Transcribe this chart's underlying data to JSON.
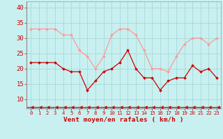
{
  "x": [
    0,
    1,
    2,
    3,
    4,
    5,
    6,
    7,
    8,
    9,
    10,
    11,
    12,
    13,
    14,
    15,
    16,
    17,
    18,
    19,
    20,
    21,
    22,
    23
  ],
  "wind_avg": [
    22,
    22,
    22,
    22,
    20,
    19,
    19,
    13,
    16,
    19,
    20,
    22,
    26,
    20,
    17,
    17,
    13,
    16,
    17,
    17,
    21,
    19,
    20,
    17
  ],
  "wind_gust": [
    33,
    33,
    33,
    33,
    31,
    31,
    26,
    24,
    20,
    24,
    31,
    33,
    33,
    31,
    26,
    20,
    20,
    19,
    24,
    28,
    30,
    30,
    28,
    30
  ],
  "wind_dir_y": [
    7.5,
    7.5,
    7.5,
    7.5,
    7.5,
    7.5,
    7.5,
    7.5,
    7.5,
    7.5,
    7.5,
    7.5,
    7.5,
    7.5,
    7.5,
    7.5,
    7.5,
    7.5,
    7.5,
    7.5,
    7.5,
    7.5,
    7.5,
    7.5
  ],
  "ylim": [
    7,
    42
  ],
  "yticks": [
    10,
    15,
    20,
    25,
    30,
    35,
    40
  ],
  "xlim": [
    -0.5,
    23.5
  ],
  "bg_color": "#c8f0f0",
  "grid_color": "#a8d8d8",
  "avg_color": "#cc0000",
  "gust_color": "#ff9999",
  "dir_color": "#cc0000",
  "xlabel": "Vent moyen/en rafales ( km/h )",
  "xlabel_color": "#cc0000",
  "tick_color": "#cc0000",
  "ytick_fontsize": 6.5,
  "xtick_fontsize": 5.2,
  "xlabel_fontsize": 6.8
}
